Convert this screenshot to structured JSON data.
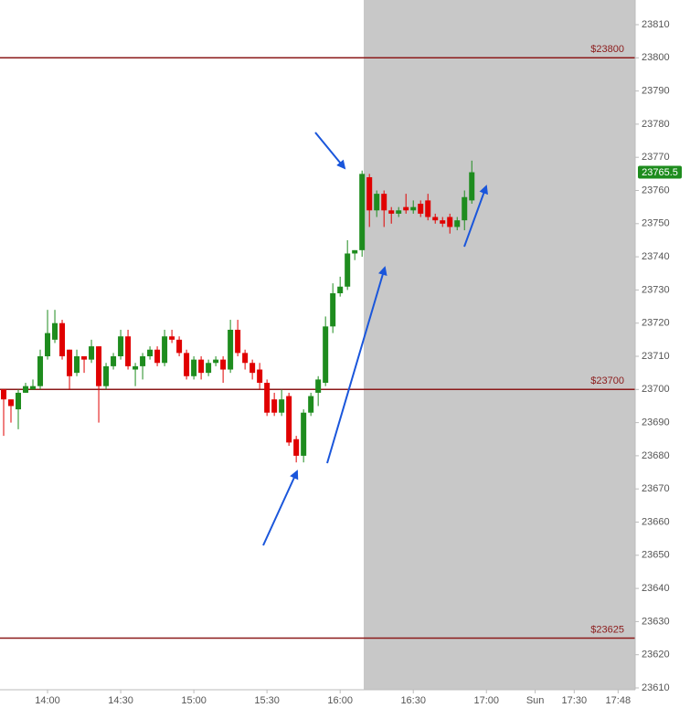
{
  "chart_data": {
    "type": "candlestick",
    "x": [
      822,
      825,
      828,
      831,
      834,
      837,
      840,
      843,
      846,
      849,
      852,
      855,
      858,
      861,
      864,
      867,
      870,
      873,
      876,
      879,
      882,
      885,
      888,
      891,
      894,
      897,
      900,
      903,
      906,
      909,
      912,
      915,
      918,
      921,
      924,
      927,
      930,
      933,
      936,
      939,
      942,
      945,
      948,
      951,
      954,
      957,
      960,
      963,
      966,
      969,
      972,
      975,
      978,
      981,
      984,
      987,
      990,
      993,
      996,
      999,
      1002,
      1005,
      1008,
      1011,
      1014
    ],
    "open": [
      23700,
      23697,
      23694,
      23699,
      23700,
      23701,
      23710,
      23715,
      23720,
      23712,
      23705,
      23710,
      23709,
      23713,
      23701,
      23707,
      23710,
      23716,
      23706,
      23707,
      23710,
      23712,
      23708,
      23716,
      23715,
      23711,
      23704,
      23709,
      23705,
      23708,
      23709,
      23706,
      23718,
      23711,
      23708,
      23706,
      23702,
      23697,
      23693,
      23698,
      23685,
      23680,
      23693,
      23699,
      23702,
      23719,
      23729,
      23731,
      23741,
      23742,
      23764,
      23754,
      23759,
      23754,
      23753,
      23755,
      23754,
      23756,
      23757,
      23752,
      23751,
      23752,
      23749,
      23751,
      23757
    ],
    "high": [
      23700,
      23697,
      23700,
      23702,
      23703,
      23712,
      23724,
      23724,
      23721,
      23712,
      23712,
      23710,
      23715,
      23713,
      23708,
      23711,
      23718,
      23718,
      23708,
      23711,
      23713,
      23713,
      23718,
      23718,
      23716,
      23712,
      23710,
      23710,
      23709,
      23710,
      23710,
      23721,
      23721,
      23712,
      23709,
      23708,
      23703,
      23699,
      23700,
      23699,
      23686,
      23694,
      23699,
      23704,
      23722,
      23732,
      23734,
      23745,
      23742,
      23766,
      23765,
      23760,
      23760,
      23755,
      23755,
      23759,
      23757,
      23757,
      23759,
      23753,
      23752,
      23753,
      23752,
      23760,
      23769
    ],
    "low": [
      23686,
      23690,
      23688,
      23699,
      23700,
      23700,
      23709,
      23714,
      23709,
      23700,
      23704,
      23705,
      23708,
      23690,
      23700,
      23706,
      23709,
      23706,
      23701,
      23703,
      23709,
      23707,
      23707,
      23714,
      23710,
      23703,
      23703,
      23703,
      23704,
      23707,
      23702,
      23705,
      23710,
      23706,
      23703,
      23700,
      23692,
      23692,
      23692,
      23683,
      23678,
      23678,
      23692,
      23695,
      23701,
      23717,
      23728,
      23730,
      23739,
      23740,
      23749,
      23752,
      23749,
      23750,
      23752,
      23753,
      23753,
      23752,
      23751,
      23750,
      23749,
      23747,
      23748,
      23748,
      23756
    ],
    "close": [
      23697,
      23695,
      23699,
      23701,
      23701,
      23710,
      23717,
      23720,
      23710,
      23704,
      23710,
      23709,
      23713,
      23701,
      23707,
      23710,
      23716,
      23707,
      23707,
      23710,
      23712,
      23708,
      23716,
      23715,
      23711,
      23704,
      23709,
      23705,
      23708,
      23709,
      23706,
      23718,
      23711,
      23708,
      23705,
      23702,
      23693,
      23693,
      23697,
      23684,
      23680,
      23693,
      23698,
      23703,
      23719,
      23729,
      23731,
      23741,
      23742,
      23765,
      23754,
      23759,
      23754,
      23753,
      23754,
      23754,
      23755,
      23753,
      23752,
      23751,
      23750,
      23749,
      23751,
      23758,
      23765.5
    ],
    "up_color": "#1e8c1e",
    "down_color": "#e00000",
    "xlim": [
      820.5,
      1081
    ],
    "xticks": [
      {
        "value": 840,
        "label": "14:00"
      },
      {
        "value": 870,
        "label": "14:30"
      },
      {
        "value": 900,
        "label": "15:00"
      },
      {
        "value": 930,
        "label": "15:30"
      },
      {
        "value": 960,
        "label": "16:00"
      },
      {
        "value": 990,
        "label": "16:30"
      },
      {
        "value": 1020,
        "label": "17:00"
      },
      {
        "value": 1040,
        "label": "Sun"
      },
      {
        "value": 1056,
        "label": "17:30"
      },
      {
        "value": 1074,
        "label": "17:48"
      }
    ],
    "ylim": [
      23610,
      23810
    ],
    "yticks": [
      23610,
      23620,
      23630,
      23640,
      23650,
      23660,
      23670,
      23680,
      23690,
      23700,
      23710,
      23720,
      23730,
      23740,
      23750,
      23760,
      23770,
      23780,
      23790,
      23800,
      23810
    ],
    "hlines": [
      {
        "value": 23800,
        "label": "$23800"
      },
      {
        "value": 23700,
        "label": "$23700"
      },
      {
        "value": 23625,
        "label": "$23625"
      }
    ],
    "hline_color": "#8b1a1a",
    "last_price": 23765.5,
    "last_price_color": "#1e8c1e"
  }
}
